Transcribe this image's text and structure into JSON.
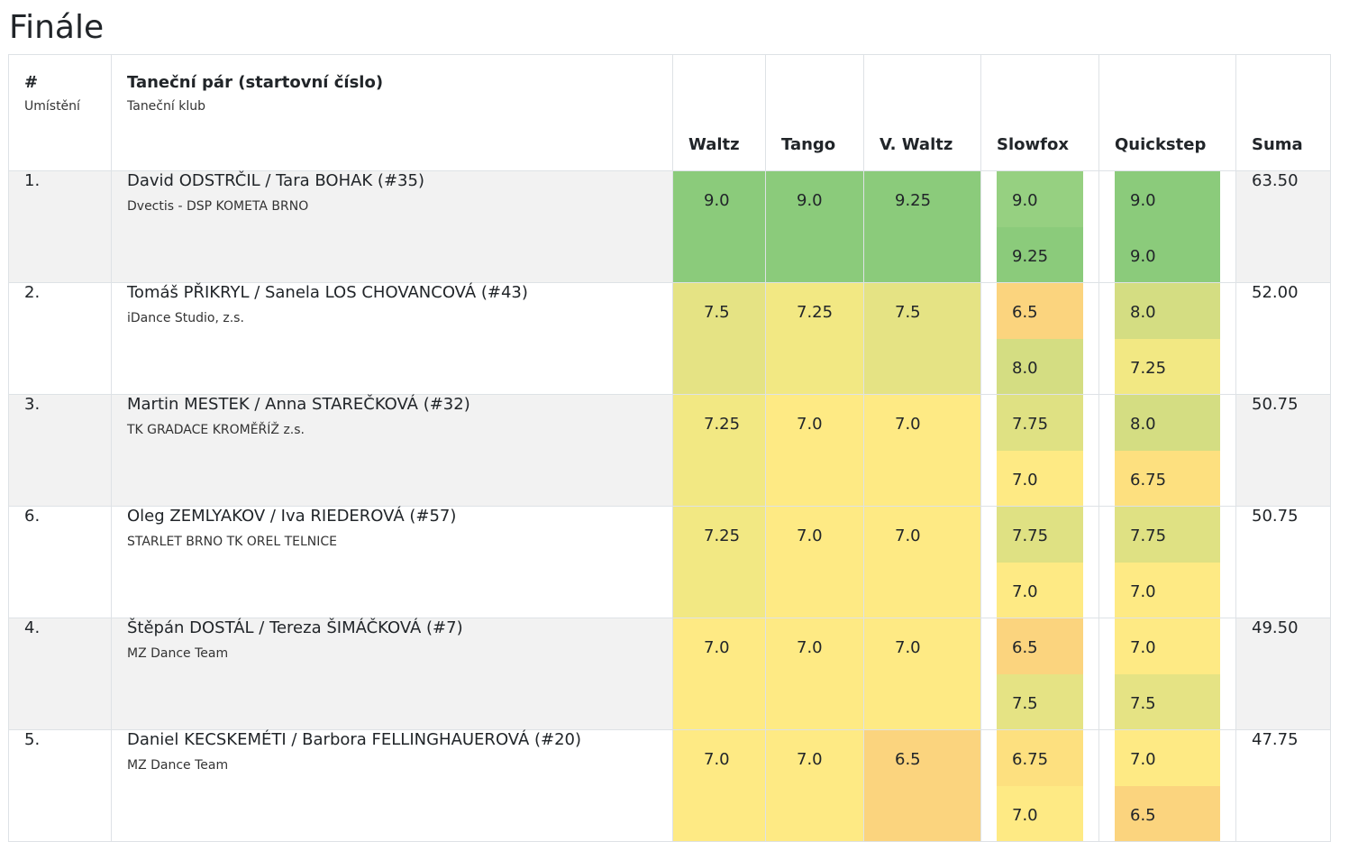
{
  "title": "Finále",
  "headers": {
    "place_main": "#",
    "place_sub": "Umístění",
    "couple_main": "Taneční pár (startovní číslo)",
    "couple_sub": "Taneční klub",
    "waltz": "Waltz",
    "tango": "Tango",
    "vwaltz": "V. Waltz",
    "slowfox": "Slowfox",
    "quickstep": "Quickstep",
    "sum": "Suma"
  },
  "rows": [
    {
      "place": "1.",
      "couple": "David ODSTRČIL / Tara BOHAK (#35)",
      "club": "Dvectis - DSP KOMETA BRNO",
      "waltz": "9.0",
      "tango": "9.0",
      "vwaltz": "9.25",
      "slowfox": [
        "9.0",
        "9.25"
      ],
      "quickstep": [
        "9.0",
        "9.0"
      ],
      "sum": "63.50",
      "colors": {
        "waltz": "#8bcb7b",
        "tango": "#8bcb7b",
        "vwaltz": "#8bcb7b",
        "slowfox": [
          "#96d081",
          "#8bcb7b"
        ],
        "quickstep": [
          "#8bcb7b",
          "#8bcb7b"
        ]
      }
    },
    {
      "place": "2.",
      "couple": "Tomáš PŘIKRYL / Sanela LOS CHOVANCOVÁ (#43)",
      "club": "iDance Studio, z.s.",
      "waltz": "7.5",
      "tango": "7.25",
      "vwaltz": "7.5",
      "slowfox": [
        "6.5",
        "8.0"
      ],
      "quickstep": [
        "8.0",
        "7.25"
      ],
      "sum": "52.00",
      "colors": {
        "waltz": "#e5e384",
        "tango": "#f2e883",
        "vwaltz": "#e5e384",
        "slowfox": [
          "#fbd47e",
          "#d4dd82"
        ],
        "quickstep": [
          "#d4dd82",
          "#f2e883"
        ]
      }
    },
    {
      "place": "3.",
      "couple": "Martin MESTEK / Anna STAREČKOVÁ (#32)",
      "club": "TK GRADACE KROMĚŘÍŽ z.s.",
      "waltz": "7.25",
      "tango": "7.0",
      "vwaltz": "7.0",
      "slowfox": [
        "7.75",
        "7.0"
      ],
      "quickstep": [
        "8.0",
        "6.75"
      ],
      "sum": "50.75",
      "colors": {
        "waltz": "#f2e883",
        "tango": "#feea84",
        "vwaltz": "#feea84",
        "slowfox": [
          "#dfe183",
          "#feea84"
        ],
        "quickstep": [
          "#d4dd82",
          "#fde07f"
        ]
      }
    },
    {
      "place": "6.",
      "couple": "Oleg ZEMLYAKOV / Iva RIEDEROVÁ (#57)",
      "club": "STARLET BRNO TK OREL TELNICE",
      "waltz": "7.25",
      "tango": "7.0",
      "vwaltz": "7.0",
      "slowfox": [
        "7.75",
        "7.0"
      ],
      "quickstep": [
        "7.75",
        "7.0"
      ],
      "sum": "50.75",
      "colors": {
        "waltz": "#f2e883",
        "tango": "#feea84",
        "vwaltz": "#feea84",
        "slowfox": [
          "#dfe183",
          "#feea84"
        ],
        "quickstep": [
          "#dfe183",
          "#feea84"
        ]
      }
    },
    {
      "place": "4.",
      "couple": "Štěpán DOSTÁL / Tereza ŠIMÁČKOVÁ (#7)",
      "club": "MZ Dance Team",
      "waltz": "7.0",
      "tango": "7.0",
      "vwaltz": "7.0",
      "slowfox": [
        "6.5",
        "7.5"
      ],
      "quickstep": [
        "7.0",
        "7.5"
      ],
      "sum": "49.50",
      "colors": {
        "waltz": "#feea84",
        "tango": "#feea84",
        "vwaltz": "#feea84",
        "slowfox": [
          "#fbd47e",
          "#e5e384"
        ],
        "quickstep": [
          "#feea84",
          "#e5e384"
        ]
      }
    },
    {
      "place": "5.",
      "couple": "Daniel KECSKEMÉTI / Barbora FELLINGHAUEROVÁ (#20)",
      "club": "MZ Dance Team",
      "waltz": "7.0",
      "tango": "7.0",
      "vwaltz": "6.5",
      "slowfox": [
        "6.75",
        "7.0"
      ],
      "quickstep": [
        "7.0",
        "6.5"
      ],
      "sum": "47.75",
      "colors": {
        "waltz": "#feea84",
        "tango": "#feea84",
        "vwaltz": "#fbd47e",
        "slowfox": [
          "#fde07f",
          "#feea84"
        ],
        "quickstep": [
          "#feea84",
          "#fbd47e"
        ]
      }
    }
  ]
}
